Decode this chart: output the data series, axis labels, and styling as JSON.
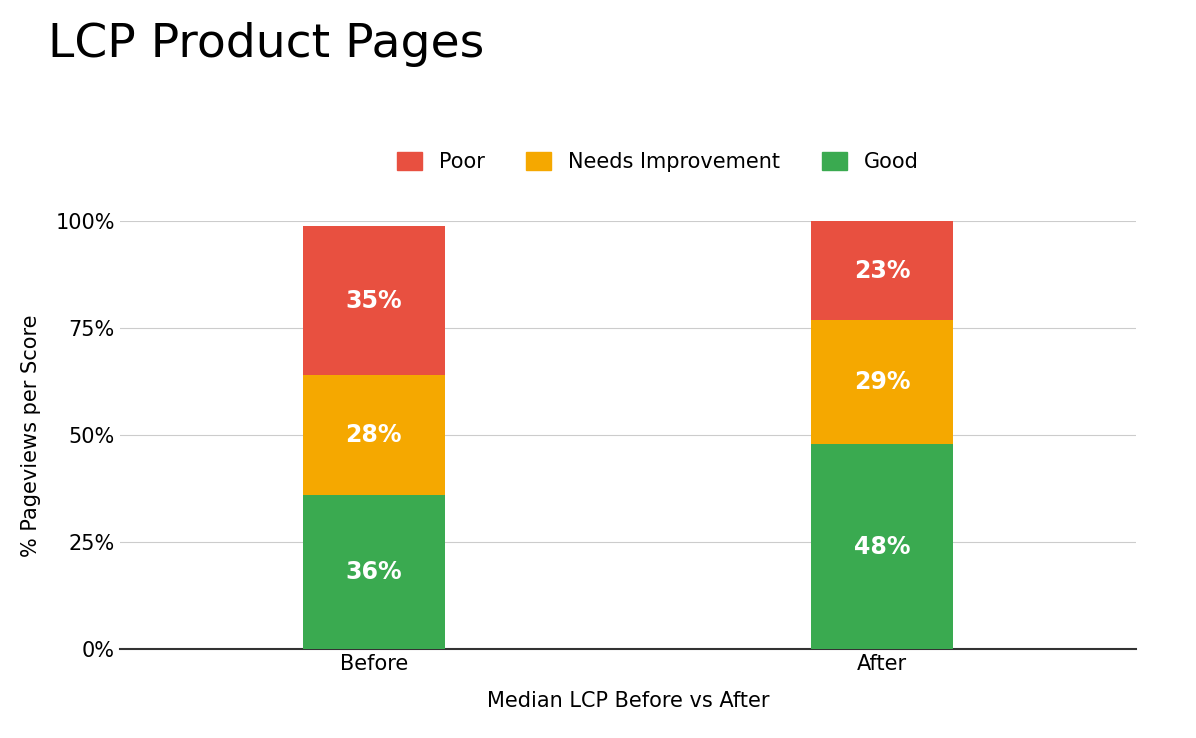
{
  "title": "LCP Product Pages",
  "xlabel": "Median LCP Before vs After",
  "ylabel": "% Pageviews per Score",
  "categories": [
    "Before",
    "After"
  ],
  "good": [
    36,
    48
  ],
  "needs": [
    28,
    29
  ],
  "poor": [
    35,
    23
  ],
  "color_good": "#3aaa50",
  "color_needs": "#f5a800",
  "color_poor": "#e85040",
  "yticks": [
    0,
    25,
    50,
    75,
    100
  ],
  "ytick_labels": [
    "0%",
    "25%",
    "50%",
    "75%",
    "100%"
  ],
  "bar_width": 0.28,
  "label_color": "#ffffff",
  "label_fontsize": 17,
  "title_fontsize": 34,
  "axis_label_fontsize": 15,
  "tick_fontsize": 15,
  "legend_fontsize": 15
}
